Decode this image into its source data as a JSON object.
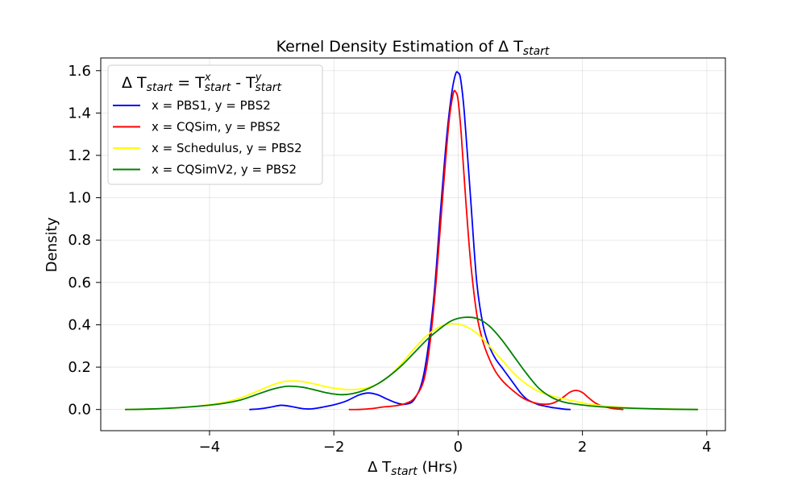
{
  "chart_data": {
    "type": "line",
    "title_prefix": "Kernel Density Estimation of Δ T",
    "title_sub": "start",
    "xlabel_prefix": "Δ T",
    "xlabel_sub": "start",
    "xlabel_suffix": " (Hrs)",
    "ylabel": "Density",
    "xlim": [
      -5.75,
      4.3
    ],
    "ylim": [
      -0.1,
      1.66
    ],
    "xticks": [
      -4,
      -2,
      0,
      2,
      4
    ],
    "xtick_labels": [
      "−4",
      "−2",
      "0",
      "2",
      "4"
    ],
    "yticks": [
      0.0,
      0.2,
      0.4,
      0.6,
      0.8,
      1.0,
      1.2,
      1.4,
      1.6
    ],
    "ytick_labels": [
      "0.0",
      "0.2",
      "0.4",
      "0.6",
      "0.8",
      "1.0",
      "1.2",
      "1.4",
      "1.6"
    ],
    "grid": true,
    "legend_placement": "top-left",
    "legend_title": {
      "a": "Δ T",
      "a_sub": "start",
      "b": " = T",
      "b_sup": "x",
      "b_sub": "start",
      "c": " - T",
      "c_sup": "y",
      "c_sub": "start"
    },
    "series": [
      {
        "name": "x = PBS1, y = PBS2",
        "color": "#0000ff",
        "points": [
          [
            -3.35,
            0.0
          ],
          [
            -3.2,
            0.003
          ],
          [
            -3.0,
            0.012
          ],
          [
            -2.85,
            0.02
          ],
          [
            -2.7,
            0.015
          ],
          [
            -2.5,
            0.004
          ],
          [
            -2.35,
            0.003
          ],
          [
            -2.2,
            0.01
          ],
          [
            -2.0,
            0.022
          ],
          [
            -1.8,
            0.04
          ],
          [
            -1.6,
            0.068
          ],
          [
            -1.45,
            0.078
          ],
          [
            -1.3,
            0.07
          ],
          [
            -1.15,
            0.05
          ],
          [
            -1.0,
            0.032
          ],
          [
            -0.85,
            0.025
          ],
          [
            -0.7,
            0.05
          ],
          [
            -0.55,
            0.17
          ],
          [
            -0.4,
            0.5
          ],
          [
            -0.28,
            0.95
          ],
          [
            -0.18,
            1.3
          ],
          [
            -0.1,
            1.5
          ],
          [
            -0.04,
            1.585
          ],
          [
            0.0,
            1.59
          ],
          [
            0.04,
            1.56
          ],
          [
            0.1,
            1.4
          ],
          [
            0.2,
            1.0
          ],
          [
            0.3,
            0.6
          ],
          [
            0.4,
            0.4
          ],
          [
            0.5,
            0.3
          ],
          [
            0.6,
            0.24
          ],
          [
            0.7,
            0.2
          ],
          [
            0.8,
            0.16
          ],
          [
            0.9,
            0.12
          ],
          [
            1.0,
            0.08
          ],
          [
            1.1,
            0.05
          ],
          [
            1.2,
            0.034
          ],
          [
            1.3,
            0.022
          ],
          [
            1.4,
            0.016
          ],
          [
            1.5,
            0.01
          ],
          [
            1.6,
            0.006
          ],
          [
            1.7,
            0.002
          ],
          [
            1.8,
            0.0
          ]
        ]
      },
      {
        "name": "x = CQSim, y = PBS2",
        "color": "#ff0000",
        "points": [
          [
            -1.75,
            0.0
          ],
          [
            -1.6,
            0.0
          ],
          [
            -1.4,
            0.004
          ],
          [
            -1.2,
            0.012
          ],
          [
            -1.0,
            0.018
          ],
          [
            -0.85,
            0.028
          ],
          [
            -0.7,
            0.055
          ],
          [
            -0.55,
            0.14
          ],
          [
            -0.45,
            0.32
          ],
          [
            -0.35,
            0.62
          ],
          [
            -0.25,
            1.0
          ],
          [
            -0.15,
            1.35
          ],
          [
            -0.08,
            1.49
          ],
          [
            -0.04,
            1.5
          ],
          [
            0.0,
            1.46
          ],
          [
            0.05,
            1.3
          ],
          [
            0.12,
            1.0
          ],
          [
            0.2,
            0.7
          ],
          [
            0.3,
            0.45
          ],
          [
            0.4,
            0.32
          ],
          [
            0.5,
            0.24
          ],
          [
            0.6,
            0.18
          ],
          [
            0.7,
            0.14
          ],
          [
            0.8,
            0.11
          ],
          [
            0.9,
            0.085
          ],
          [
            1.0,
            0.062
          ],
          [
            1.1,
            0.045
          ],
          [
            1.2,
            0.034
          ],
          [
            1.3,
            0.027
          ],
          [
            1.4,
            0.025
          ],
          [
            1.5,
            0.028
          ],
          [
            1.6,
            0.04
          ],
          [
            1.7,
            0.06
          ],
          [
            1.8,
            0.082
          ],
          [
            1.9,
            0.09
          ],
          [
            2.0,
            0.08
          ],
          [
            2.1,
            0.055
          ],
          [
            2.2,
            0.032
          ],
          [
            2.3,
            0.018
          ],
          [
            2.4,
            0.01
          ],
          [
            2.5,
            0.004
          ],
          [
            2.65,
            0.0
          ]
        ]
      },
      {
        "name": "x = Schedulus, y = PBS2",
        "color": "#ffff00",
        "points": [
          [
            -5.35,
            0.0
          ],
          [
            -5.0,
            0.002
          ],
          [
            -4.6,
            0.007
          ],
          [
            -4.2,
            0.016
          ],
          [
            -3.8,
            0.032
          ],
          [
            -3.5,
            0.055
          ],
          [
            -3.2,
            0.09
          ],
          [
            -3.0,
            0.115
          ],
          [
            -2.8,
            0.132
          ],
          [
            -2.65,
            0.135
          ],
          [
            -2.5,
            0.132
          ],
          [
            -2.3,
            0.12
          ],
          [
            -2.1,
            0.106
          ],
          [
            -1.9,
            0.097
          ],
          [
            -1.7,
            0.094
          ],
          [
            -1.5,
            0.1
          ],
          [
            -1.3,
            0.12
          ],
          [
            -1.1,
            0.16
          ],
          [
            -0.9,
            0.22
          ],
          [
            -0.7,
            0.29
          ],
          [
            -0.5,
            0.35
          ],
          [
            -0.3,
            0.39
          ],
          [
            -0.1,
            0.405
          ],
          [
            0.1,
            0.395
          ],
          [
            0.3,
            0.36
          ],
          [
            0.5,
            0.3
          ],
          [
            0.7,
            0.235
          ],
          [
            0.9,
            0.17
          ],
          [
            1.1,
            0.12
          ],
          [
            1.3,
            0.085
          ],
          [
            1.5,
            0.065
          ],
          [
            1.7,
            0.05
          ],
          [
            1.9,
            0.038
          ],
          [
            2.1,
            0.026
          ],
          [
            2.4,
            0.015
          ],
          [
            2.8,
            0.007
          ],
          [
            3.2,
            0.003
          ],
          [
            3.85,
            0.0
          ]
        ]
      },
      {
        "name": "x = CQSimV2, y = PBS2",
        "color": "#008000",
        "points": [
          [
            -5.35,
            0.0
          ],
          [
            -5.0,
            0.002
          ],
          [
            -4.6,
            0.007
          ],
          [
            -4.2,
            0.015
          ],
          [
            -3.8,
            0.028
          ],
          [
            -3.5,
            0.045
          ],
          [
            -3.2,
            0.075
          ],
          [
            -3.0,
            0.095
          ],
          [
            -2.8,
            0.108
          ],
          [
            -2.7,
            0.11
          ],
          [
            -2.5,
            0.105
          ],
          [
            -2.3,
            0.092
          ],
          [
            -2.1,
            0.078
          ],
          [
            -1.9,
            0.07
          ],
          [
            -1.7,
            0.075
          ],
          [
            -1.5,
            0.092
          ],
          [
            -1.3,
            0.12
          ],
          [
            -1.1,
            0.16
          ],
          [
            -0.9,
            0.21
          ],
          [
            -0.7,
            0.27
          ],
          [
            -0.5,
            0.33
          ],
          [
            -0.3,
            0.38
          ],
          [
            -0.1,
            0.42
          ],
          [
            0.1,
            0.435
          ],
          [
            0.3,
            0.43
          ],
          [
            0.5,
            0.395
          ],
          [
            0.7,
            0.33
          ],
          [
            0.9,
            0.25
          ],
          [
            1.1,
            0.17
          ],
          [
            1.3,
            0.1
          ],
          [
            1.5,
            0.058
          ],
          [
            1.7,
            0.035
          ],
          [
            1.9,
            0.025
          ],
          [
            2.1,
            0.018
          ],
          [
            2.4,
            0.011
          ],
          [
            2.8,
            0.006
          ],
          [
            3.3,
            0.002
          ],
          [
            3.85,
            0.0
          ]
        ]
      }
    ]
  }
}
